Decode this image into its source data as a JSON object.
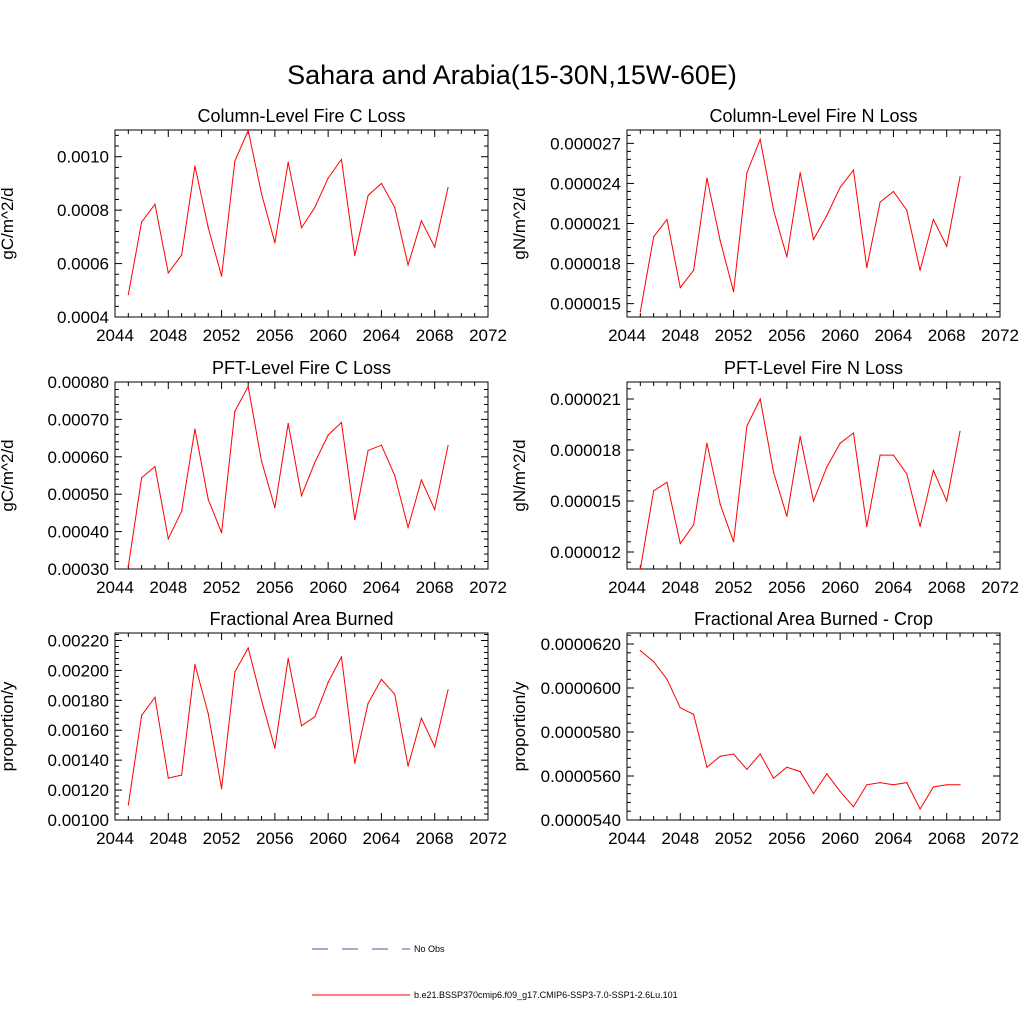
{
  "figure": {
    "title": "Sahara and Arabia(15-30N,15W-60E)"
  },
  "legend": [
    {
      "label": "No Obs",
      "color": "#4a5aa8",
      "style": "dashed"
    },
    {
      "label": "b.e21.BSSP370cmip6.f09_g17.CMIP6-SSP3-7.0-SSP1-2.6Lu.101",
      "color": "#ff0000",
      "style": "solid"
    }
  ],
  "chart_data": [
    {
      "type": "line",
      "title": "Column-Level Fire C Loss",
      "ylabel": "gC/m^2/d",
      "xlim": [
        2044,
        2072
      ],
      "ylim": [
        0.0004,
        0.0011
      ],
      "xticks": [
        "2044",
        "2048",
        "2052",
        "2056",
        "2060",
        "2064",
        "2068",
        "2072"
      ],
      "yticks": [
        "0.0004",
        "0.0006",
        "0.0008",
        "0.0010"
      ],
      "x": [
        2045,
        2046,
        2047,
        2048,
        2049,
        2050,
        2051,
        2052,
        2053,
        2054,
        2055,
        2056,
        2057,
        2058,
        2059,
        2060,
        2061,
        2062,
        2063,
        2064,
        2065,
        2066,
        2067,
        2068,
        2069
      ],
      "series": [
        {
          "color": "#ff0000",
          "values": [
            0.000484,
            0.000756,
            0.000822,
            0.000565,
            0.000632,
            0.000965,
            0.000734,
            0.000553,
            0.000984,
            0.001098,
            0.000861,
            0.000678,
            0.000979,
            0.000734,
            0.00081,
            0.00092,
            0.00099,
            0.00063,
            0.000855,
            0.0009,
            0.00081,
            0.000595,
            0.00076,
            0.000662,
            0.000885
          ]
        }
      ]
    },
    {
      "type": "line",
      "title": "Column-Level Fire N Loss",
      "ylabel": "gN/m^2/d",
      "xlim": [
        2044,
        2072
      ],
      "ylim": [
        1.4e-05,
        2.8e-05
      ],
      "xticks": [
        "2044",
        "2048",
        "2052",
        "2056",
        "2060",
        "2064",
        "2068",
        "2072"
      ],
      "yticks": [
        "0.000015",
        "0.000018",
        "0.000021",
        "0.000024",
        "0.000027"
      ],
      "x": [
        2045,
        2046,
        2047,
        2048,
        2049,
        2050,
        2051,
        2052,
        2053,
        2054,
        2055,
        2056,
        2057,
        2058,
        2059,
        2060,
        2061,
        2062,
        2063,
        2064,
        2065,
        2066,
        2067,
        2068,
        2069
      ],
      "series": [
        {
          "color": "#ff0000",
          "values": [
            1.44e-05,
            2e-05,
            2.13e-05,
            1.62e-05,
            1.75e-05,
            2.44e-05,
            1.97e-05,
            1.59e-05,
            2.48e-05,
            2.73e-05,
            2.2e-05,
            1.85e-05,
            2.48e-05,
            1.98e-05,
            2.16e-05,
            2.37e-05,
            2.5e-05,
            1.77e-05,
            2.26e-05,
            2.34e-05,
            2.2e-05,
            1.75e-05,
            2.13e-05,
            1.93e-05,
            2.45e-05
          ]
        }
      ]
    },
    {
      "type": "line",
      "title": "PFT-Level Fire C Loss",
      "ylabel": "gC/m^2/d",
      "xlim": [
        2044,
        2072
      ],
      "ylim": [
        0.0003,
        0.0008
      ],
      "xticks": [
        "2044",
        "2048",
        "2052",
        "2056",
        "2060",
        "2064",
        "2068",
        "2072"
      ],
      "yticks": [
        "0.00030",
        "0.00040",
        "0.00050",
        "0.00060",
        "0.00070",
        "0.00080"
      ],
      "x": [
        2045,
        2046,
        2047,
        2048,
        2049,
        2050,
        2051,
        2052,
        2053,
        2054,
        2055,
        2056,
        2057,
        2058,
        2059,
        2060,
        2061,
        2062,
        2063,
        2064,
        2065,
        2066,
        2067,
        2068,
        2069
      ],
      "series": [
        {
          "color": "#ff0000",
          "values": [
            0.000307,
            0.000544,
            0.000574,
            0.000381,
            0.000454,
            0.000674,
            0.000486,
            0.000397,
            0.000722,
            0.000788,
            0.000588,
            0.000464,
            0.000689,
            0.000496,
            0.000585,
            0.000658,
            0.000692,
            0.000432,
            0.000617,
            0.000631,
            0.00055,
            0.000411,
            0.000538,
            0.000459,
            0.00063
          ]
        }
      ]
    },
    {
      "type": "line",
      "title": "PFT-Level Fire N Loss",
      "ylabel": "gN/m^2/d",
      "xlim": [
        2044,
        2072
      ],
      "ylim": [
        1.1e-05,
        2.2e-05
      ],
      "xticks": [
        "2044",
        "2048",
        "2052",
        "2056",
        "2060",
        "2064",
        "2068",
        "2072"
      ],
      "yticks": [
        "0.000012",
        "0.000015",
        "0.000018",
        "0.000021"
      ],
      "x": [
        2045,
        2046,
        2047,
        2048,
        2049,
        2050,
        2051,
        2052,
        2053,
        2054,
        2055,
        2056,
        2057,
        2058,
        2059,
        2060,
        2061,
        2062,
        2063,
        2064,
        2065,
        2066,
        2067,
        2068,
        2069
      ],
      "series": [
        {
          "color": "#ff0000",
          "values": [
            1.1e-05,
            1.56e-05,
            1.61e-05,
            1.25e-05,
            1.36e-05,
            1.84e-05,
            1.48e-05,
            1.26e-05,
            1.94e-05,
            2.1e-05,
            1.67e-05,
            1.41e-05,
            1.88e-05,
            1.5e-05,
            1.7e-05,
            1.84e-05,
            1.9e-05,
            1.35e-05,
            1.77e-05,
            1.77e-05,
            1.66e-05,
            1.35e-05,
            1.68e-05,
            1.5e-05,
            1.91e-05
          ]
        }
      ]
    },
    {
      "type": "line",
      "title": "Fractional Area Burned",
      "ylabel": "proportion/y",
      "xlim": [
        2044,
        2072
      ],
      "ylim": [
        0.001,
        0.00225
      ],
      "xticks": [
        "2044",
        "2048",
        "2052",
        "2056",
        "2060",
        "2064",
        "2068",
        "2072"
      ],
      "yticks": [
        "0.00100",
        "0.00120",
        "0.00140",
        "0.00160",
        "0.00180",
        "0.00200",
        "0.00220"
      ],
      "x": [
        2045,
        2046,
        2047,
        2048,
        2049,
        2050,
        2051,
        2052,
        2053,
        2054,
        2055,
        2056,
        2057,
        2058,
        2059,
        2060,
        2061,
        2062,
        2063,
        2064,
        2065,
        2066,
        2067,
        2068,
        2069
      ],
      "series": [
        {
          "color": "#ff0000",
          "values": [
            0.0011,
            0.0017,
            0.00182,
            0.00128,
            0.0013,
            0.00204,
            0.00171,
            0.00121,
            0.00199,
            0.00215,
            0.0018,
            0.00148,
            0.00208,
            0.00163,
            0.00169,
            0.00192,
            0.00209,
            0.00138,
            0.00178,
            0.00194,
            0.00184,
            0.00136,
            0.00168,
            0.00149,
            0.00187
          ]
        }
      ]
    },
    {
      "type": "line",
      "title": "Fractional Area Burned - Crop",
      "ylabel": "proportion/y",
      "xlim": [
        2044,
        2072
      ],
      "ylim": [
        5.4e-05,
        6.25e-05
      ],
      "xticks": [
        "2044",
        "2048",
        "2052",
        "2056",
        "2060",
        "2064",
        "2068",
        "2072"
      ],
      "yticks": [
        "0.0000540",
        "0.0000560",
        "0.0000580",
        "0.0000600",
        "0.0000620"
      ],
      "x": [
        2045,
        2046,
        2047,
        2048,
        2049,
        2050,
        2051,
        2052,
        2053,
        2054,
        2055,
        2056,
        2057,
        2058,
        2059,
        2060,
        2061,
        2062,
        2063,
        2064,
        2065,
        2066,
        2067,
        2068,
        2069
      ],
      "series": [
        {
          "color": "#ff0000",
          "values": [
            6.17e-05,
            6.12e-05,
            6.04e-05,
            5.91e-05,
            5.88e-05,
            5.64e-05,
            5.69e-05,
            5.7e-05,
            5.63e-05,
            5.7e-05,
            5.59e-05,
            5.64e-05,
            5.62e-05,
            5.52e-05,
            5.61e-05,
            5.53e-05,
            5.46e-05,
            5.56e-05,
            5.57e-05,
            5.56e-05,
            5.57e-05,
            5.45e-05,
            5.55e-05,
            5.56e-05,
            5.56e-05
          ]
        }
      ]
    }
  ]
}
